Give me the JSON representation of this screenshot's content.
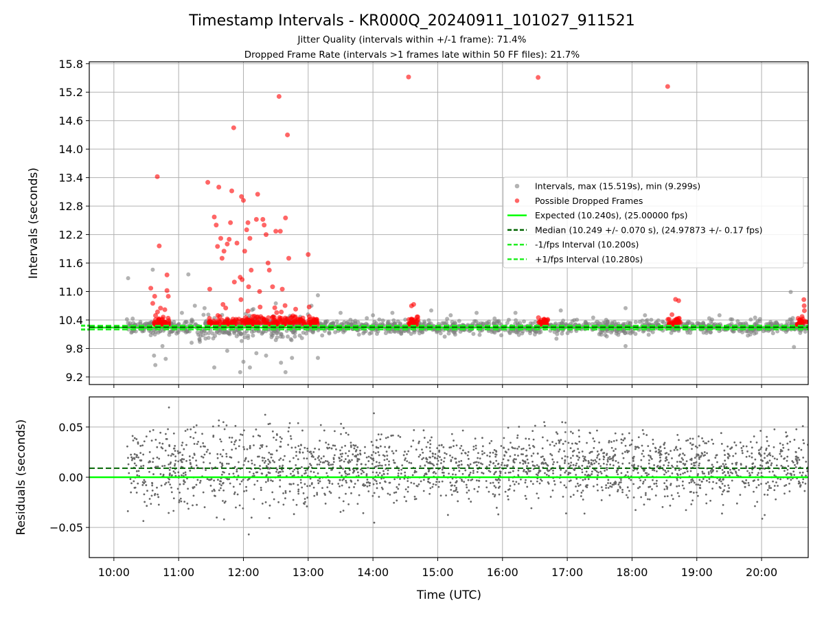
{
  "colors": {
    "interval": "#808080",
    "dropped": "#ff0000",
    "expected": "#00ff00",
    "median": "#006400",
    "fps_bound": "#22ee22",
    "residual": "#666666",
    "grid": "#b0b0b0"
  },
  "chart_data": {
    "title": "Timestamp Intervals - KR000Q_20240911_101027_911521",
    "subtitle_1": "Jitter Quality (intervals within +/-1 frame): 71.4%",
    "subtitle_2": "Dropped Frame Rate (intervals >1 frames late within 50 FF files): 21.7%",
    "xlabel": "Time (UTC)",
    "xlim_hours": [
      9.62,
      20.72
    ],
    "x_ticks": [
      10,
      11,
      12,
      13,
      14,
      15,
      16,
      17,
      18,
      19,
      20
    ],
    "x_tick_labels": [
      "10:00",
      "11:00",
      "12:00",
      "13:00",
      "14:00",
      "15:00",
      "16:00",
      "17:00",
      "18:00",
      "19:00",
      "20:00"
    ],
    "grid": true,
    "panels": [
      {
        "type": "scatter",
        "ylabel": "Intervals (seconds)",
        "ylim": [
          9.04,
          15.84
        ],
        "y_ticks": [
          9.2,
          9.8,
          10.4,
          11.0,
          11.6,
          12.2,
          12.8,
          13.4,
          14.0,
          14.6,
          15.2,
          15.8
        ],
        "y_tick_labels": [
          "9.2",
          "9.8",
          "10.4",
          "11.0",
          "11.6",
          "12.2",
          "12.8",
          "13.4",
          "14.0",
          "14.6",
          "15.2",
          "15.8"
        ],
        "legend_position": "center-right",
        "series": [
          {
            "name": "Intervals, max (15.519s), min (9.299s)",
            "kind": "scatter",
            "points": [
              [
                10.22,
                11.28
              ],
              [
                10.6,
                11.46
              ],
              [
                10.62,
                9.65
              ],
              [
                10.64,
                9.45
              ],
              [
                10.75,
                9.85
              ],
              [
                10.8,
                9.58
              ],
              [
                11.05,
                10.55
              ],
              [
                11.15,
                11.36
              ],
              [
                11.2,
                9.92
              ],
              [
                11.25,
                10.7
              ],
              [
                11.4,
                10.65
              ],
              [
                11.55,
                9.4
              ],
              [
                11.75,
                9.75
              ],
              [
                11.95,
                9.3
              ],
              [
                12.0,
                9.52
              ],
              [
                12.1,
                9.4
              ],
              [
                12.2,
                9.7
              ],
              [
                12.35,
                9.65
              ],
              [
                12.5,
                10.75
              ],
              [
                12.58,
                9.5
              ],
              [
                12.65,
                9.3
              ],
              [
                12.75,
                9.6
              ],
              [
                13.05,
                10.7
              ],
              [
                13.15,
                10.92
              ],
              [
                13.15,
                9.6
              ],
              [
                13.5,
                10.55
              ],
              [
                14.0,
                10.5
              ],
              [
                14.3,
                10.55
              ],
              [
                14.9,
                10.6
              ],
              [
                15.2,
                10.5
              ],
              [
                15.6,
                10.55
              ],
              [
                16.2,
                10.55
              ],
              [
                16.9,
                10.6
              ],
              [
                17.4,
                10.45
              ],
              [
                17.9,
                10.65
              ],
              [
                17.9,
                9.85
              ],
              [
                18.2,
                10.5
              ],
              [
                19.35,
                10.5
              ],
              [
                19.9,
                10.45
              ],
              [
                20.45,
                10.99
              ],
              [
                20.5,
                9.83
              ]
            ],
            "band_noise": {
              "center": 10.25,
              "spread": 0.3,
              "count": 1400,
              "x_start": 10.2,
              "x_end": 20.7
            }
          },
          {
            "name": "Possible Dropped Frames",
            "kind": "scatter",
            "points": [
              [
                10.57,
                11.07
              ],
              [
                10.6,
                10.75
              ],
              [
                10.63,
                10.9
              ],
              [
                10.67,
                13.42
              ],
              [
                10.7,
                11.96
              ],
              [
                10.72,
                10.65
              ],
              [
                10.82,
                11.35
              ],
              [
                10.82,
                11.02
              ],
              [
                10.84,
                10.9
              ],
              [
                11.45,
                13.3
              ],
              [
                11.48,
                11.05
              ],
              [
                11.55,
                12.57
              ],
              [
                11.58,
                12.4
              ],
              [
                11.6,
                11.95
              ],
              [
                11.62,
                13.2
              ],
              [
                11.65,
                12.12
              ],
              [
                11.67,
                11.7
              ],
              [
                11.7,
                11.85
              ],
              [
                11.75,
                12.0
              ],
              [
                11.78,
                12.1
              ],
              [
                11.8,
                12.45
              ],
              [
                11.82,
                13.12
              ],
              [
                11.85,
                14.45
              ],
              [
                11.86,
                11.2
              ],
              [
                11.9,
                12.02
              ],
              [
                11.95,
                11.3
              ],
              [
                11.97,
                13.0
              ],
              [
                11.98,
                11.25
              ],
              [
                12.0,
                12.92
              ],
              [
                12.02,
                11.85
              ],
              [
                12.05,
                12.3
              ],
              [
                12.07,
                12.45
              ],
              [
                12.08,
                11.1
              ],
              [
                12.1,
                12.12
              ],
              [
                12.12,
                11.45
              ],
              [
                12.2,
                12.52
              ],
              [
                12.22,
                13.05
              ],
              [
                12.25,
                11.0
              ],
              [
                12.3,
                12.52
              ],
              [
                12.32,
                12.4
              ],
              [
                12.35,
                12.2
              ],
              [
                12.38,
                11.6
              ],
              [
                12.4,
                11.45
              ],
              [
                12.45,
                11.1
              ],
              [
                12.5,
                12.27
              ],
              [
                12.55,
                15.11
              ],
              [
                12.57,
                12.27
              ],
              [
                12.6,
                11.05
              ],
              [
                12.65,
                12.55
              ],
              [
                12.68,
                14.3
              ],
              [
                12.7,
                11.7
              ],
              [
                13.0,
                11.78
              ],
              [
                14.55,
                15.52
              ],
              [
                16.55,
                15.51
              ],
              [
                18.55,
                15.32
              ]
            ],
            "clusters": [
              [
                10.62,
                10.85
              ],
              [
                11.45,
                12.95
              ],
              [
                13.0,
                13.15
              ],
              [
                14.55,
                14.7
              ],
              [
                16.55,
                16.7
              ],
              [
                18.55,
                18.75
              ],
              [
                20.55,
                20.7
              ]
            ]
          },
          {
            "name": "Expected (10.240s), (25.00000 fps)",
            "kind": "hline",
            "y": 10.24,
            "style": "solid"
          },
          {
            "name": "Median (10.249 +/- 0.070 s), (24.97873 +/- 0.17 fps)",
            "kind": "hline",
            "y": 10.249,
            "style": "dashed"
          },
          {
            "name": "-1/fps Interval (10.200s)",
            "kind": "hline",
            "y": 10.2,
            "style": "dashed"
          },
          {
            "name": "+1/fps Interval (10.280s)",
            "kind": "hline",
            "y": 10.28,
            "style": "dashed"
          }
        ]
      },
      {
        "type": "scatter",
        "ylabel": "Residuals (seconds)",
        "ylim": [
          -0.08,
          0.08
        ],
        "y_ticks": [
          -0.05,
          0.0,
          0.05
        ],
        "y_tick_labels": [
          "−0.05",
          "0.00",
          "0.05"
        ],
        "series": [
          {
            "name": "Residuals",
            "kind": "scatter",
            "noise": {
              "center": 0.01,
              "spread": 0.09,
              "count": 2200,
              "x_start": 10.2,
              "x_end": 20.72
            }
          },
          {
            "name": "Expected",
            "kind": "hline",
            "y": 0.0,
            "style": "solid"
          },
          {
            "name": "Median",
            "kind": "hline",
            "y": 0.009,
            "style": "dashed"
          }
        ]
      }
    ]
  }
}
